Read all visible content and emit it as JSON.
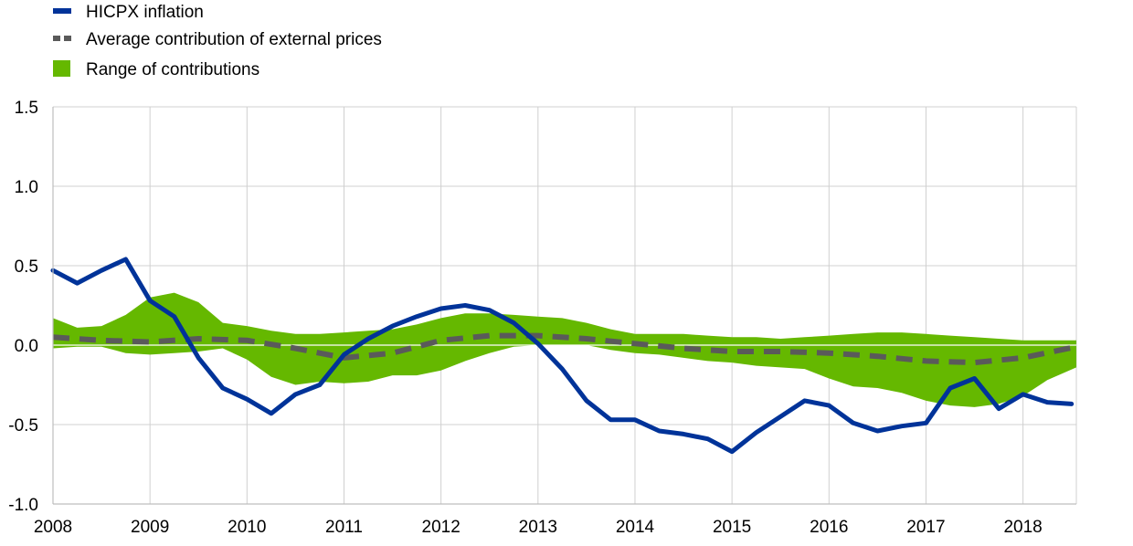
{
  "chart_data": {
    "type": "line",
    "title": "",
    "xlabel": "",
    "ylabel": "",
    "xlim": [
      2008,
      2018.55
    ],
    "ylim": [
      -1.0,
      1.5
    ],
    "y_ticks": [
      {
        "value": 1.5,
        "label": "1.5"
      },
      {
        "value": 1.0,
        "label": "1.0"
      },
      {
        "value": 0.5,
        "label": "0.5"
      },
      {
        "value": 0.0,
        "label": "0.0"
      },
      {
        "value": -0.5,
        "label": "-0.5"
      },
      {
        "value": -1.0,
        "label": "-1.0"
      }
    ],
    "x_ticks": [
      {
        "value": 2008,
        "label": "2008"
      },
      {
        "value": 2009,
        "label": "2009"
      },
      {
        "value": 2010,
        "label": "2010"
      },
      {
        "value": 2011,
        "label": "2011"
      },
      {
        "value": 2012,
        "label": "2012"
      },
      {
        "value": 2013,
        "label": "2013"
      },
      {
        "value": 2014,
        "label": "2014"
      },
      {
        "value": 2015,
        "label": "2015"
      },
      {
        "value": 2016,
        "label": "2016"
      },
      {
        "value": 2017,
        "label": "2017"
      },
      {
        "value": 2018,
        "label": "2018"
      }
    ],
    "grid": true,
    "legend_position": "top-left",
    "legend": [
      {
        "label": "HICPX inflation",
        "kind": "line",
        "color": "#003399"
      },
      {
        "label": "Average contribution of external prices",
        "kind": "dashed",
        "color": "#5a5a5a"
      },
      {
        "label": "Range of contributions",
        "kind": "area",
        "color": "#65b800"
      }
    ],
    "series": [
      {
        "name": "HICPX inflation",
        "kind": "line",
        "color": "#003399",
        "points": [
          [
            2008.0,
            0.47
          ],
          [
            2008.25,
            0.39
          ],
          [
            2008.5,
            0.47
          ],
          [
            2008.75,
            0.54
          ],
          [
            2009.0,
            0.28
          ],
          [
            2009.25,
            0.18
          ],
          [
            2009.5,
            -0.08
          ],
          [
            2009.75,
            -0.27
          ],
          [
            2010.0,
            -0.34
          ],
          [
            2010.25,
            -0.43
          ],
          [
            2010.5,
            -0.31
          ],
          [
            2010.75,
            -0.25
          ],
          [
            2011.0,
            -0.06
          ],
          [
            2011.25,
            0.04
          ],
          [
            2011.5,
            0.12
          ],
          [
            2011.75,
            0.18
          ],
          [
            2012.0,
            0.23
          ],
          [
            2012.25,
            0.25
          ],
          [
            2012.5,
            0.22
          ],
          [
            2012.75,
            0.14
          ],
          [
            2013.0,
            0.01
          ],
          [
            2013.25,
            -0.15
          ],
          [
            2013.5,
            -0.35
          ],
          [
            2013.75,
            -0.47
          ],
          [
            2014.0,
            -0.47
          ],
          [
            2014.25,
            -0.54
          ],
          [
            2014.5,
            -0.56
          ],
          [
            2014.75,
            -0.59
          ],
          [
            2015.0,
            -0.67
          ],
          [
            2015.25,
            -0.55
          ],
          [
            2015.5,
            -0.45
          ],
          [
            2015.75,
            -0.35
          ],
          [
            2016.0,
            -0.38
          ],
          [
            2016.25,
            -0.49
          ],
          [
            2016.5,
            -0.54
          ],
          [
            2016.75,
            -0.51
          ],
          [
            2017.0,
            -0.49
          ],
          [
            2017.25,
            -0.27
          ],
          [
            2017.5,
            -0.21
          ],
          [
            2017.75,
            -0.4
          ],
          [
            2018.0,
            -0.31
          ],
          [
            2018.25,
            -0.36
          ],
          [
            2018.5,
            -0.37
          ]
        ]
      },
      {
        "name": "Average contribution of external prices",
        "kind": "dashed",
        "color": "#5a5a5a",
        "points": [
          [
            2008.0,
            0.05
          ],
          [
            2008.5,
            0.03
          ],
          [
            2009.0,
            0.02
          ],
          [
            2009.5,
            0.04
          ],
          [
            2010.0,
            0.03
          ],
          [
            2010.5,
            -0.02
          ],
          [
            2011.0,
            -0.08
          ],
          [
            2011.5,
            -0.05
          ],
          [
            2012.0,
            0.03
          ],
          [
            2012.5,
            0.06
          ],
          [
            2013.0,
            0.06
          ],
          [
            2013.5,
            0.04
          ],
          [
            2014.0,
            0.01
          ],
          [
            2014.5,
            -0.02
          ],
          [
            2015.0,
            -0.04
          ],
          [
            2015.5,
            -0.04
          ],
          [
            2016.0,
            -0.05
          ],
          [
            2016.5,
            -0.07
          ],
          [
            2017.0,
            -0.1
          ],
          [
            2017.5,
            -0.11
          ],
          [
            2018.0,
            -0.08
          ],
          [
            2018.55,
            -0.01
          ]
        ]
      },
      {
        "name": "Range of contributions",
        "kind": "area",
        "color": "#65b800",
        "upper": [
          [
            2008.0,
            0.17
          ],
          [
            2008.25,
            0.11
          ],
          [
            2008.5,
            0.12
          ],
          [
            2008.75,
            0.19
          ],
          [
            2009.0,
            0.3
          ],
          [
            2009.25,
            0.33
          ],
          [
            2009.5,
            0.27
          ],
          [
            2009.75,
            0.14
          ],
          [
            2010.0,
            0.12
          ],
          [
            2010.25,
            0.09
          ],
          [
            2010.5,
            0.07
          ],
          [
            2010.75,
            0.07
          ],
          [
            2011.0,
            0.08
          ],
          [
            2011.25,
            0.09
          ],
          [
            2011.5,
            0.1
          ],
          [
            2011.75,
            0.13
          ],
          [
            2012.0,
            0.17
          ],
          [
            2012.25,
            0.2
          ],
          [
            2012.5,
            0.2
          ],
          [
            2012.75,
            0.19
          ],
          [
            2013.0,
            0.18
          ],
          [
            2013.25,
            0.17
          ],
          [
            2013.5,
            0.14
          ],
          [
            2013.75,
            0.1
          ],
          [
            2014.0,
            0.07
          ],
          [
            2014.25,
            0.07
          ],
          [
            2014.5,
            0.07
          ],
          [
            2014.75,
            0.06
          ],
          [
            2015.0,
            0.05
          ],
          [
            2015.25,
            0.05
          ],
          [
            2015.5,
            0.04
          ],
          [
            2015.75,
            0.05
          ],
          [
            2016.0,
            0.06
          ],
          [
            2016.25,
            0.07
          ],
          [
            2016.5,
            0.08
          ],
          [
            2016.75,
            0.08
          ],
          [
            2017.0,
            0.07
          ],
          [
            2017.25,
            0.06
          ],
          [
            2017.5,
            0.05
          ],
          [
            2017.75,
            0.04
          ],
          [
            2018.0,
            0.03
          ],
          [
            2018.25,
            0.03
          ],
          [
            2018.55,
            0.03
          ]
        ],
        "lower": [
          [
            2008.0,
            -0.02
          ],
          [
            2008.25,
            -0.01
          ],
          [
            2008.5,
            -0.01
          ],
          [
            2008.75,
            -0.05
          ],
          [
            2009.0,
            -0.06
          ],
          [
            2009.25,
            -0.05
          ],
          [
            2009.5,
            -0.04
          ],
          [
            2009.75,
            -0.02
          ],
          [
            2010.0,
            -0.09
          ],
          [
            2010.25,
            -0.2
          ],
          [
            2010.5,
            -0.25
          ],
          [
            2010.75,
            -0.23
          ],
          [
            2011.0,
            -0.24
          ],
          [
            2011.25,
            -0.23
          ],
          [
            2011.5,
            -0.19
          ],
          [
            2011.75,
            -0.19
          ],
          [
            2012.0,
            -0.16
          ],
          [
            2012.25,
            -0.1
          ],
          [
            2012.5,
            -0.05
          ],
          [
            2012.75,
            -0.01
          ],
          [
            2013.0,
            0.0
          ],
          [
            2013.25,
            0.0
          ],
          [
            2013.5,
            0.0
          ],
          [
            2013.75,
            -0.03
          ],
          [
            2014.0,
            -0.05
          ],
          [
            2014.25,
            -0.06
          ],
          [
            2014.5,
            -0.08
          ],
          [
            2014.75,
            -0.1
          ],
          [
            2015.0,
            -0.11
          ],
          [
            2015.25,
            -0.13
          ],
          [
            2015.5,
            -0.14
          ],
          [
            2015.75,
            -0.15
          ],
          [
            2016.0,
            -0.21
          ],
          [
            2016.25,
            -0.26
          ],
          [
            2016.5,
            -0.27
          ],
          [
            2016.75,
            -0.3
          ],
          [
            2017.0,
            -0.35
          ],
          [
            2017.25,
            -0.38
          ],
          [
            2017.5,
            -0.39
          ],
          [
            2017.75,
            -0.37
          ],
          [
            2018.0,
            -0.32
          ],
          [
            2018.25,
            -0.22
          ],
          [
            2018.55,
            -0.14
          ]
        ]
      }
    ]
  }
}
